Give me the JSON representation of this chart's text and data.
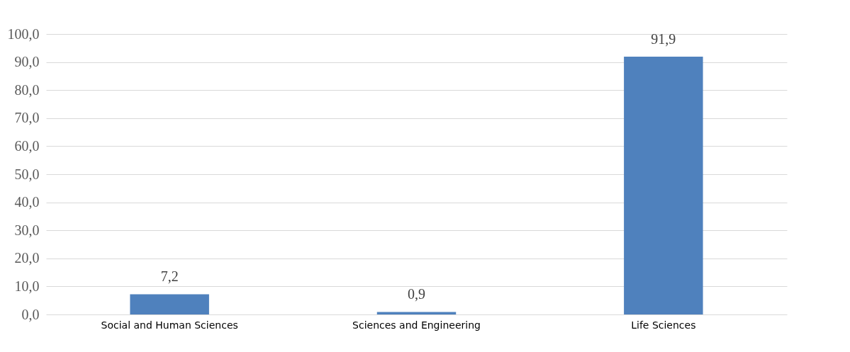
{
  "chart_data": {
    "type": "bar",
    "categories": [
      "Social and Human Sciences",
      "Sciences and Engineering",
      "Life Sciences"
    ],
    "values": [
      7.2,
      0.9,
      91.9
    ],
    "value_labels": [
      "7,2",
      "0,9",
      "91,9"
    ],
    "color": "#4f81bd",
    "ylim": [
      0,
      100
    ],
    "yticks": [
      {
        "value": 0,
        "label": "0,0"
      },
      {
        "value": 10,
        "label": "10,0"
      },
      {
        "value": 20,
        "label": "20,0"
      },
      {
        "value": 30,
        "label": "30,0"
      },
      {
        "value": 40,
        "label": "40,0"
      },
      {
        "value": 50,
        "label": "50,0"
      },
      {
        "value": 60,
        "label": "60,0"
      },
      {
        "value": 70,
        "label": "70,0"
      },
      {
        "value": 80,
        "label": "80,0"
      },
      {
        "value": 90,
        "label": "90,0"
      },
      {
        "value": 100,
        "label": "100,0"
      }
    ],
    "grid": "y"
  }
}
